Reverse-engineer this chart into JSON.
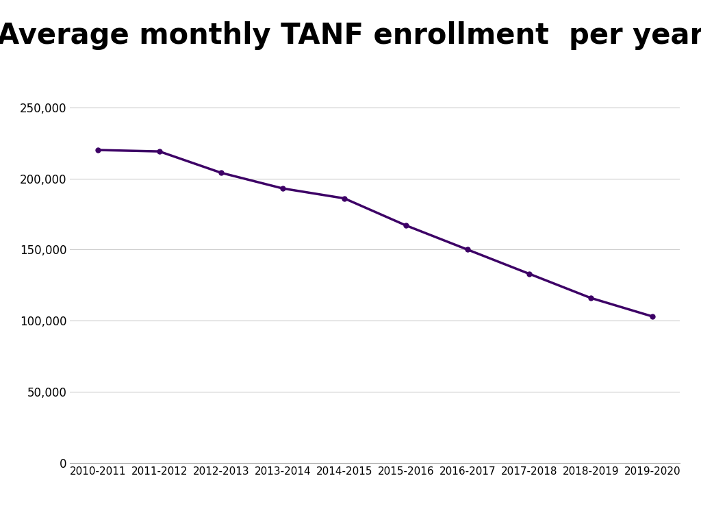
{
  "title": "Average monthly TANF enrollment  per year",
  "x_labels": [
    "2010-2011",
    "2011-2012",
    "2012-2013",
    "2013-2014",
    "2014-2015",
    "2015-2016",
    "2016-2017",
    "2017-2018",
    "2018-2019",
    "2019-2020"
  ],
  "y_values": [
    220000,
    219000,
    204000,
    193000,
    186000,
    167000,
    150000,
    133000,
    116000,
    103000
  ],
  "line_color": "#3d0066",
  "marker": "o",
  "marker_size": 5,
  "line_width": 2.5,
  "ylim": [
    0,
    270000
  ],
  "yticks": [
    0,
    50000,
    100000,
    150000,
    200000,
    250000
  ],
  "background_color": "#ffffff",
  "title_fontsize": 30,
  "tick_fontsize": 12,
  "xtick_fontsize": 11,
  "grid_color": "#cccccc"
}
